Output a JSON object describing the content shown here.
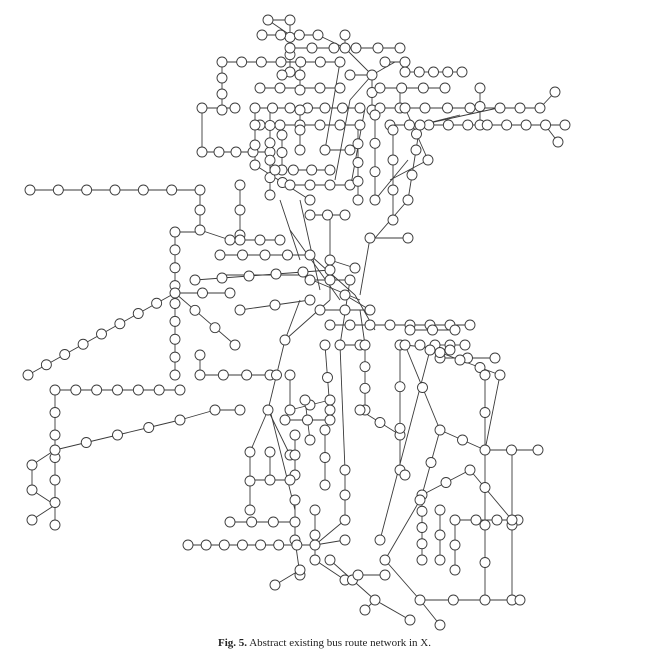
{
  "figure": {
    "label": "Fig. 5.",
    "caption": "Abstract existing bus route network in X."
  },
  "colors": {
    "line": "#3a3a3a",
    "node_fill": "#ffffff",
    "background": "#ffffff"
  }
}
